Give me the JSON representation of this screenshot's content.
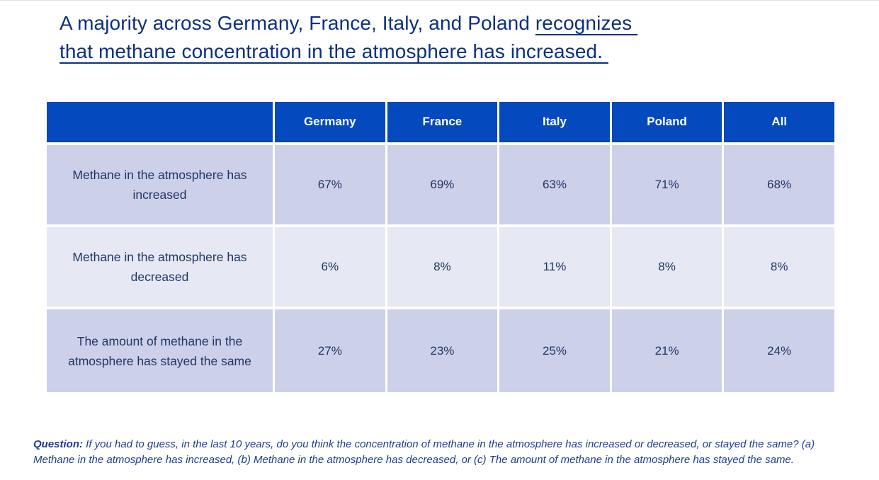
{
  "title": {
    "line1_plain": "A majority across Germany, France, Italy, and Poland ",
    "line1_underline": "recognizes ",
    "line2_underline": "that methane concentration in the atmosphere has increased. "
  },
  "table": {
    "header": [
      "Germany",
      "France",
      "Italy",
      "Poland",
      "All"
    ],
    "rows": [
      {
        "label": "Methane in the atmosphere has increased",
        "values": [
          "67%",
          "69%",
          "63%",
          "71%",
          "68%"
        ]
      },
      {
        "label": "Methane in the atmosphere has decreased",
        "values": [
          "6%",
          "8%",
          "11%",
          "8%",
          "8%"
        ]
      },
      {
        "label": "The amount of methane in the atmosphere has stayed the same",
        "values": [
          "27%",
          "23%",
          "25%",
          "21%",
          "24%"
        ]
      }
    ]
  },
  "footnote": {
    "label": "Question:",
    "text": "If you had to guess, in the last 10 years, do you think the concentration of methane in the atmosphere has increased or decreased, or stayed the same? (a) Methane in the atmosphere has increased, (b) Methane in the atmosphere has decreased, or (c) The amount of methane in the atmosphere has stayed the same."
  },
  "colors": {
    "header_bg": "#0449BD",
    "header_text": "#FFFFFF",
    "row_odd_bg": "#CDD0E9",
    "row_even_bg": "#E6E8F3",
    "cell_text": "#1F3864",
    "title_text": "#0D3080",
    "footnote_text": "#1F3D8F"
  }
}
